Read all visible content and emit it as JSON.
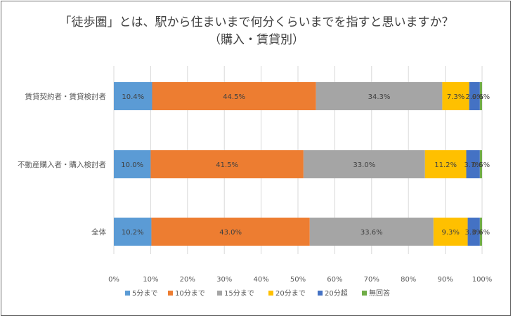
{
  "chart_data": {
    "type": "bar",
    "orientation": "horizontal",
    "stacked": "percent",
    "title": "「徒歩圏」とは、駅から住まいまで何分くらいまでを指すと思いますか？",
    "subtitle": "（購入・賃貸別）",
    "categories": [
      "賃貸契約者・賃貸検討者",
      "不動産購入者・購入検討者",
      "全体"
    ],
    "series": [
      {
        "name": "5分まで",
        "color": "#5b9bd5",
        "values": [
          10.4,
          10.0,
          10.2
        ],
        "labels": [
          "10.4%",
          "10.0%",
          "10.2%"
        ]
      },
      {
        "name": "10分まで",
        "color": "#ed7d31",
        "values": [
          44.5,
          41.5,
          43.0
        ],
        "labels": [
          "44.5%",
          "41.5%",
          "43.0%"
        ]
      },
      {
        "name": "15分まで",
        "color": "#a5a5a5",
        "values": [
          34.3,
          33.0,
          33.6
        ],
        "labels": [
          "34.3%",
          "33.0%",
          "33.6%"
        ]
      },
      {
        "name": "20分まで",
        "color": "#ffc000",
        "values": [
          7.3,
          11.2,
          9.3
        ],
        "labels": [
          "7.3%",
          "11.2%",
          "9.3%"
        ]
      },
      {
        "name": "20分超",
        "color": "#4472c4",
        "values": [
          2.9,
          3.7,
          3.3
        ],
        "labels": [
          "2.9%",
          "3.7%",
          "3.3%"
        ]
      },
      {
        "name": "無回答",
        "color": "#70ad47",
        "values": [
          0.6,
          0.6,
          0.6
        ],
        "labels": [
          "0.6%",
          "0.6%",
          "0.6%"
        ]
      }
    ],
    "xlim": [
      0,
      100
    ],
    "x_ticks": [
      "0%",
      "10%",
      "20%",
      "30%",
      "40%",
      "50%",
      "60%",
      "70%",
      "80%",
      "90%",
      "100%"
    ],
    "grid": true,
    "legend_position": "bottom"
  }
}
